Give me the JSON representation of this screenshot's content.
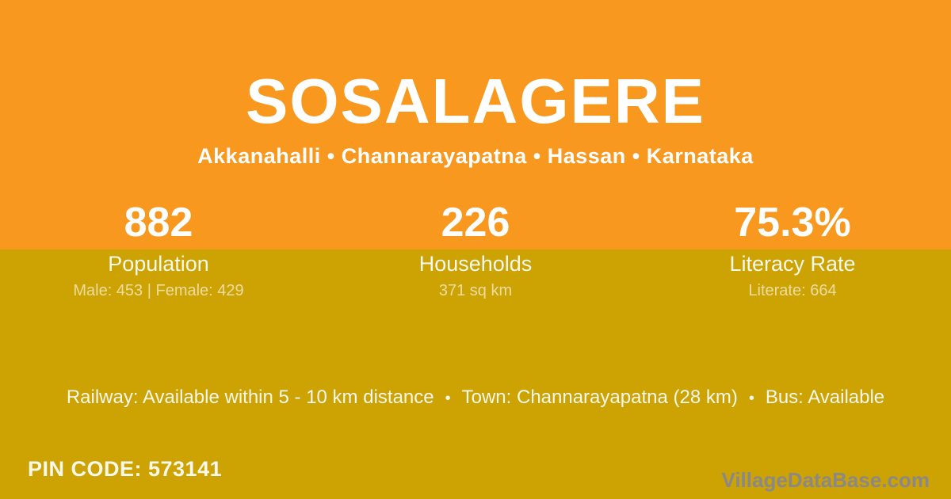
{
  "colors": {
    "orange_bg": "#F8981E",
    "gold_bg": "#CDA203",
    "text_white": "#FFFFFF",
    "watermark_gray": "#8A8888"
  },
  "header": {
    "title": "SOSALAGERE",
    "subtitle": "Akkanahalli • Channarayapatna • Hassan • Karnataka"
  },
  "stats": [
    {
      "value": "882",
      "label": "Population",
      "detail": "Male: 453 | Female: 429"
    },
    {
      "value": "226",
      "label": "Households",
      "detail": "371 sq km"
    },
    {
      "value": "75.3%",
      "label": "Literacy Rate",
      "detail": "Literate: 664"
    }
  ],
  "transport": {
    "railway": "Railway: Available within 5 - 10 km distance",
    "town": "Town: Channarayapatna (28 km)",
    "bus": "Bus: Available",
    "separator": "•"
  },
  "footer": {
    "pin_code": "PIN CODE: 573141",
    "watermark": "VillageDataBase.com"
  }
}
